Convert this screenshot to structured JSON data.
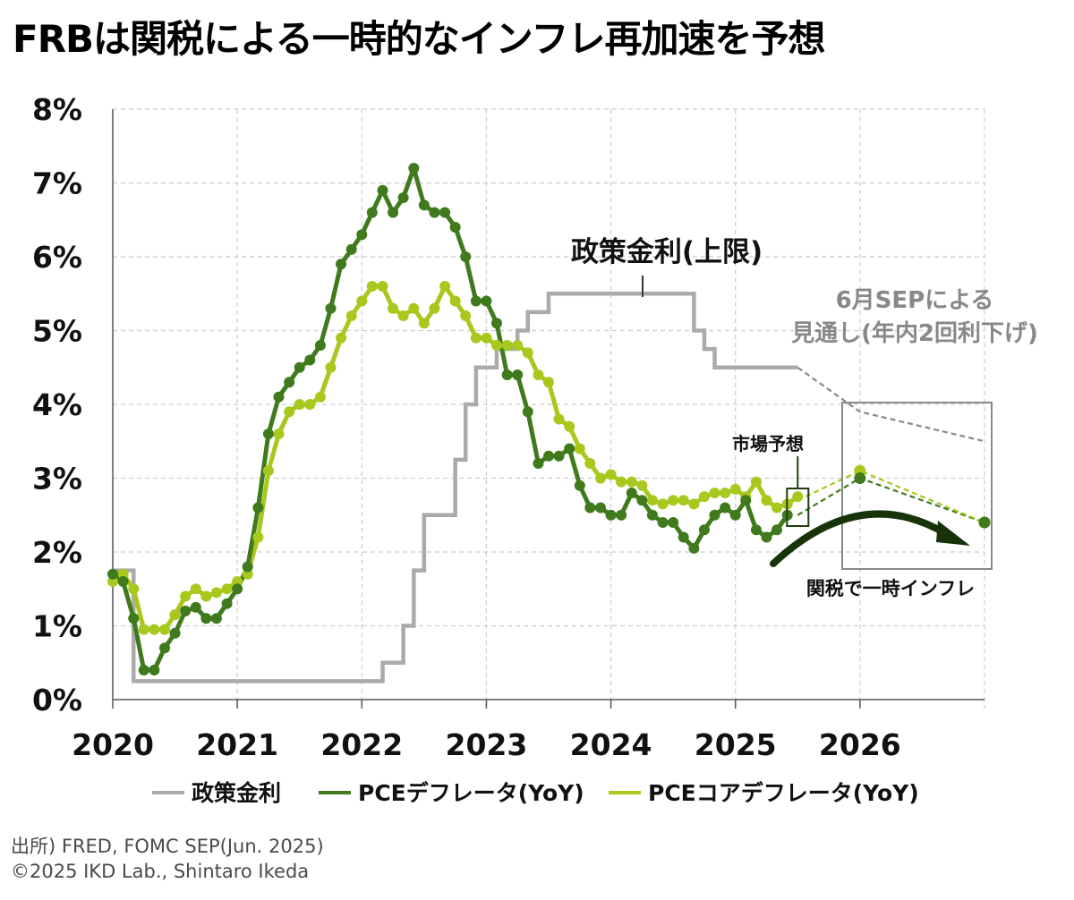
{
  "title": "FRBは関税による一時的なインフレ再加速を予想",
  "source": "出所) FRED, FOMC SEP(Jun. 2025)",
  "credit": "©2025 IKD Lab., Shintaro Ikeda",
  "colors": {
    "policy_rate": "#aaaaaa",
    "pce": "#3f7a1c",
    "core_pce": "#a8c81e",
    "sep_projection": "#888888",
    "arrow": "#16330a",
    "grid": "#cccccc"
  },
  "chart_data": {
    "type": "line",
    "title": "FRBは関税による一時的なインフレ再加速を予想",
    "xlabel": "",
    "ylabel": "",
    "xlim": [
      2020.0,
      2027.0
    ],
    "ylim": [
      0,
      8
    ],
    "x_ticks": [
      "2020",
      "2021",
      "2022",
      "2023",
      "2024",
      "2025",
      "2026"
    ],
    "y_ticks": [
      "0%",
      "1%",
      "2%",
      "3%",
      "4%",
      "5%",
      "6%",
      "7%",
      "8%"
    ],
    "grid": true,
    "legend_position": "bottom",
    "legend": [
      "政策金利",
      "PCEデフレータ(YoY)",
      "PCEコアデフレータ(YoY)"
    ],
    "series": [
      {
        "name": "政策金利",
        "style": "step",
        "x": [
          2020.0,
          2020.167,
          2020.25,
          2022.167,
          2022.25,
          2022.333,
          2022.417,
          2022.5,
          2022.583,
          2022.75,
          2022.833,
          2022.917,
          2023.083,
          2023.25,
          2023.333,
          2023.5,
          2024.667,
          2024.75,
          2024.833,
          2025.5
        ],
        "y": [
          1.75,
          0.25,
          0.25,
          0.5,
          0.5,
          1.0,
          1.75,
          2.5,
          2.5,
          3.25,
          4.0,
          4.5,
          4.75,
          5.0,
          5.25,
          5.5,
          5.0,
          4.75,
          4.5,
          4.5
        ]
      },
      {
        "name": "PCEデフレータ(YoY)",
        "x": [
          2020.0,
          2020.083,
          2020.167,
          2020.25,
          2020.333,
          2020.417,
          2020.5,
          2020.583,
          2020.667,
          2020.75,
          2020.833,
          2020.917,
          2021.0,
          2021.083,
          2021.167,
          2021.25,
          2021.333,
          2021.417,
          2021.5,
          2021.583,
          2021.667,
          2021.75,
          2021.833,
          2021.917,
          2022.0,
          2022.083,
          2022.167,
          2022.25,
          2022.333,
          2022.417,
          2022.5,
          2022.583,
          2022.667,
          2022.75,
          2022.833,
          2022.917,
          2023.0,
          2023.083,
          2023.167,
          2023.25,
          2023.333,
          2023.417,
          2023.5,
          2023.583,
          2023.667,
          2023.75,
          2023.833,
          2023.917,
          2024.0,
          2024.083,
          2024.167,
          2024.25,
          2024.333,
          2024.417,
          2024.5,
          2024.583,
          2024.667,
          2024.75,
          2024.833,
          2024.917,
          2025.0,
          2025.083,
          2025.167,
          2025.25,
          2025.333,
          2025.417
        ],
        "y": [
          1.7,
          1.6,
          1.1,
          0.4,
          0.4,
          0.7,
          0.9,
          1.2,
          1.25,
          1.1,
          1.1,
          1.3,
          1.5,
          1.8,
          2.6,
          3.6,
          4.1,
          4.3,
          4.5,
          4.6,
          4.8,
          5.3,
          5.9,
          6.1,
          6.3,
          6.6,
          6.9,
          6.6,
          6.8,
          7.2,
          6.7,
          6.6,
          6.6,
          6.4,
          6.0,
          5.4,
          5.4,
          5.1,
          4.4,
          4.4,
          3.9,
          3.2,
          3.3,
          3.3,
          3.4,
          2.9,
          2.6,
          2.6,
          2.5,
          2.5,
          2.8,
          2.7,
          2.5,
          2.4,
          2.4,
          2.2,
          2.05,
          2.3,
          2.5,
          2.6,
          2.5,
          2.7,
          2.3,
          2.2,
          2.3,
          2.5
        ]
      },
      {
        "name": "PCEコアデフレータ(YoY)",
        "x": [
          2020.0,
          2020.083,
          2020.167,
          2020.25,
          2020.333,
          2020.417,
          2020.5,
          2020.583,
          2020.667,
          2020.75,
          2020.833,
          2020.917,
          2021.0,
          2021.083,
          2021.167,
          2021.25,
          2021.333,
          2021.417,
          2021.5,
          2021.583,
          2021.667,
          2021.75,
          2021.833,
          2021.917,
          2022.0,
          2022.083,
          2022.167,
          2022.25,
          2022.333,
          2022.417,
          2022.5,
          2022.583,
          2022.667,
          2022.75,
          2022.833,
          2022.917,
          2023.0,
          2023.083,
          2023.167,
          2023.25,
          2023.333,
          2023.417,
          2023.5,
          2023.583,
          2023.667,
          2023.75,
          2023.833,
          2023.917,
          2024.0,
          2024.083,
          2024.167,
          2024.25,
          2024.333,
          2024.417,
          2024.5,
          2024.583,
          2024.667,
          2024.75,
          2024.833,
          2024.917,
          2025.0,
          2025.083,
          2025.167,
          2025.25,
          2025.333,
          2025.417,
          2025.5
        ],
        "y": [
          1.6,
          1.7,
          1.5,
          0.95,
          0.95,
          0.95,
          1.15,
          1.4,
          1.5,
          1.4,
          1.45,
          1.5,
          1.6,
          1.7,
          2.2,
          3.1,
          3.6,
          3.9,
          4.0,
          4.0,
          4.1,
          4.5,
          4.9,
          5.2,
          5.4,
          5.6,
          5.6,
          5.3,
          5.2,
          5.3,
          5.1,
          5.3,
          5.6,
          5.4,
          5.2,
          4.9,
          4.9,
          4.8,
          4.8,
          4.8,
          4.7,
          4.4,
          4.3,
          3.8,
          3.7,
          3.4,
          3.2,
          3.0,
          3.05,
          2.95,
          2.95,
          2.9,
          2.7,
          2.65,
          2.7,
          2.7,
          2.65,
          2.75,
          2.8,
          2.8,
          2.85,
          2.75,
          2.95,
          2.7,
          2.6,
          2.65,
          2.75
        ]
      },
      {
        "name": "政策金利見通し",
        "style": "dashed",
        "x": [
          2025.5,
          2026.0,
          2027.0
        ],
        "y": [
          4.5,
          3.9,
          3.5
        ]
      },
      {
        "name": "PCEデフレータ見通し",
        "style": "dashed",
        "x": [
          2025.5,
          2026.0,
          2027.0
        ],
        "y": [
          2.5,
          3.0,
          2.4
        ]
      },
      {
        "name": "PCEコアデフレータ見通し",
        "style": "dashed",
        "x": [
          2025.5,
          2026.0,
          2027.0
        ],
        "y": [
          2.7,
          3.1,
          2.4
        ]
      }
    ],
    "annotations": {
      "policy_rate_label": "政策金利(上限)",
      "sep_label_line1": "6月SEPによる",
      "sep_label_line2": "見通し(年内2回利下げ)",
      "market_label": "市場予想",
      "tariff_label": "関税で一時インフレ"
    }
  }
}
